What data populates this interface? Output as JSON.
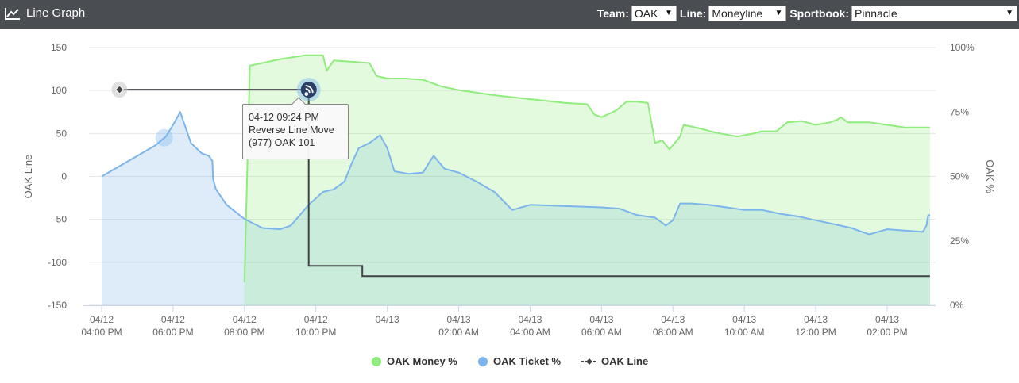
{
  "header": {
    "title": "Line Graph",
    "icon": "line-chart-icon",
    "team_label": "Team:",
    "team_value": "OAK",
    "line_label": "Line:",
    "line_value": "Moneyline",
    "sportsbook_label": "Sportbook:",
    "sportsbook_value": "Pinnacle"
  },
  "tooltip": {
    "time": "04-12 09:24 PM",
    "event": "Reverse Line Move",
    "detail": "(977) OAK 101"
  },
  "legend": {
    "money": "OAK Money %",
    "ticket": "OAK Ticket %",
    "line": "OAK Line"
  },
  "chart_data": {
    "type": "line",
    "x_unit": "hours after 04/12 03:00 PM",
    "x_ticks": [
      {
        "x": 1,
        "date": "04/12",
        "time": "04:00 PM"
      },
      {
        "x": 3,
        "date": "04/12",
        "time": "06:00 PM"
      },
      {
        "x": 5,
        "date": "04/12",
        "time": "08:00 PM"
      },
      {
        "x": 7,
        "date": "04/12",
        "time": "10:00 PM"
      },
      {
        "x": 9,
        "date": "04/13",
        "time": ""
      },
      {
        "x": 11,
        "date": "04/13",
        "time": "02:00 AM"
      },
      {
        "x": 13,
        "date": "04/13",
        "time": "04:00 AM"
      },
      {
        "x": 15,
        "date": "04/13",
        "time": "06:00 AM"
      },
      {
        "x": 17,
        "date": "04/13",
        "time": "08:00 AM"
      },
      {
        "x": 19,
        "date": "04/13",
        "time": "10:00 AM"
      },
      {
        "x": 21,
        "date": "04/13",
        "time": "12:00 PM"
      },
      {
        "x": 23,
        "date": "04/13",
        "time": "02:00 PM"
      }
    ],
    "xlim": [
      0.7,
      24.2
    ],
    "y_left": {
      "label": "OAK Line",
      "ticks": [
        150,
        100,
        50,
        0,
        -50,
        -100,
        -150
      ],
      "ylim": [
        -150,
        150
      ]
    },
    "y_right": {
      "label": "OAK %",
      "ticks": [
        "100%",
        "75%",
        "50%",
        "25%",
        "0%"
      ],
      "ylim": [
        0,
        100
      ]
    },
    "colors": {
      "money": "#90ed7d",
      "ticket": "#7cb5ec",
      "line": "#434348"
    },
    "series": [
      {
        "name": "OAK Money %",
        "axis": "right",
        "points": [
          [
            5.0,
            9
          ],
          [
            5.15,
            93
          ],
          [
            5.5,
            94
          ],
          [
            6.0,
            95.5
          ],
          [
            6.7,
            97
          ],
          [
            7.0,
            97
          ],
          [
            7.2,
            97
          ],
          [
            7.3,
            91
          ],
          [
            7.5,
            95
          ],
          [
            8.0,
            94.5
          ],
          [
            8.5,
            94
          ],
          [
            8.7,
            89
          ],
          [
            9.0,
            88
          ],
          [
            9.5,
            88
          ],
          [
            10.0,
            87.5
          ],
          [
            10.5,
            85
          ],
          [
            11.0,
            83.5
          ],
          [
            12.0,
            81.5
          ],
          [
            13.0,
            80
          ],
          [
            14.0,
            78.5
          ],
          [
            14.6,
            78
          ],
          [
            14.8,
            74
          ],
          [
            15.0,
            73
          ],
          [
            15.4,
            75.5
          ],
          [
            15.7,
            79
          ],
          [
            16.0,
            79
          ],
          [
            16.3,
            78.5
          ],
          [
            16.5,
            63
          ],
          [
            16.7,
            64
          ],
          [
            16.9,
            60.5
          ],
          [
            17.2,
            65.5
          ],
          [
            17.3,
            70
          ],
          [
            17.8,
            68.5
          ],
          [
            18.2,
            67
          ],
          [
            18.8,
            65.5
          ],
          [
            19.2,
            66.5
          ],
          [
            19.5,
            67.5
          ],
          [
            19.9,
            67.5
          ],
          [
            20.2,
            71
          ],
          [
            20.6,
            71.5
          ],
          [
            21.0,
            70
          ],
          [
            21.4,
            71
          ],
          [
            21.6,
            72
          ],
          [
            21.7,
            73
          ],
          [
            21.9,
            71
          ],
          [
            22.5,
            71
          ],
          [
            23.0,
            70
          ],
          [
            23.5,
            69
          ],
          [
            24.0,
            69
          ],
          [
            24.2,
            69
          ]
        ]
      },
      {
        "name": "OAK Ticket %",
        "axis": "right",
        "points": [
          [
            1.0,
            50
          ],
          [
            1.5,
            54
          ],
          [
            2.0,
            58
          ],
          [
            2.5,
            62
          ],
          [
            2.8,
            65.5
          ],
          [
            3.0,
            70
          ],
          [
            3.2,
            75
          ],
          [
            3.5,
            63
          ],
          [
            3.8,
            59
          ],
          [
            4.0,
            58
          ],
          [
            4.1,
            56
          ],
          [
            4.12,
            49
          ],
          [
            4.2,
            45
          ],
          [
            4.5,
            39
          ],
          [
            5.0,
            33.5
          ],
          [
            5.5,
            30
          ],
          [
            6.0,
            29.5
          ],
          [
            6.3,
            31
          ],
          [
            6.8,
            39
          ],
          [
            7.2,
            44
          ],
          [
            7.5,
            45
          ],
          [
            7.8,
            48
          ],
          [
            8.0,
            55
          ],
          [
            8.2,
            61
          ],
          [
            8.5,
            63
          ],
          [
            8.8,
            66
          ],
          [
            9.0,
            61
          ],
          [
            9.2,
            52
          ],
          [
            9.6,
            51
          ],
          [
            10.0,
            51.5
          ],
          [
            10.2,
            56
          ],
          [
            10.3,
            58
          ],
          [
            10.6,
            53
          ],
          [
            11.0,
            51.5
          ],
          [
            11.5,
            48
          ],
          [
            12.0,
            44
          ],
          [
            12.5,
            37
          ],
          [
            13.0,
            39
          ],
          [
            14.0,
            38.5
          ],
          [
            15.0,
            38
          ],
          [
            15.5,
            37.5
          ],
          [
            16.0,
            35
          ],
          [
            16.5,
            34
          ],
          [
            16.8,
            31
          ],
          [
            17.0,
            33
          ],
          [
            17.2,
            39.5
          ],
          [
            17.5,
            39.5
          ],
          [
            18.0,
            39
          ],
          [
            18.5,
            38
          ],
          [
            19.0,
            37
          ],
          [
            19.5,
            37
          ],
          [
            20.0,
            35.5
          ],
          [
            20.5,
            34.5
          ],
          [
            21.0,
            33
          ],
          [
            21.5,
            31.5
          ],
          [
            22.0,
            30
          ],
          [
            22.3,
            28.5
          ],
          [
            22.5,
            27.5
          ],
          [
            23.0,
            29.5
          ],
          [
            23.5,
            29
          ],
          [
            24.0,
            28.5
          ],
          [
            24.1,
            31
          ],
          [
            24.15,
            35
          ],
          [
            24.2,
            35
          ]
        ]
      },
      {
        "name": "OAK Line",
        "axis": "left",
        "points": [
          [
            1.5,
            101
          ],
          [
            6.8,
            101
          ],
          [
            6.8,
            -104
          ],
          [
            8.3,
            -104
          ],
          [
            8.3,
            -116
          ],
          [
            24.2,
            -116
          ]
        ]
      }
    ]
  }
}
